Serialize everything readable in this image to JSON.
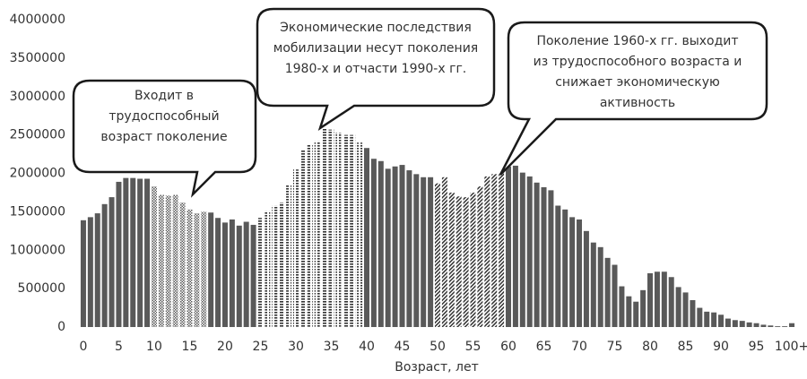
{
  "chart_data": {
    "type": "bar",
    "x_label": "Возраст, лет",
    "categories": [
      "0",
      null,
      null,
      null,
      null,
      "5",
      null,
      null,
      null,
      null,
      "10",
      null,
      null,
      null,
      null,
      "15",
      null,
      null,
      null,
      null,
      "20",
      null,
      null,
      null,
      null,
      "25",
      null,
      null,
      null,
      null,
      "30",
      null,
      null,
      null,
      null,
      "35",
      null,
      null,
      null,
      null,
      "40",
      null,
      null,
      null,
      null,
      "45",
      null,
      null,
      null,
      null,
      "50",
      null,
      null,
      null,
      null,
      "55",
      null,
      null,
      null,
      null,
      "60",
      null,
      null,
      null,
      null,
      "65",
      null,
      null,
      null,
      null,
      "70",
      null,
      null,
      null,
      null,
      "75",
      null,
      null,
      null,
      null,
      "80",
      null,
      null,
      null,
      null,
      "85",
      null,
      null,
      null,
      null,
      "90",
      null,
      null,
      null,
      null,
      "95",
      null,
      null,
      null,
      null,
      "100+"
    ],
    "values": [
      1390000,
      1430000,
      1480000,
      1600000,
      1690000,
      1890000,
      1940000,
      1940000,
      1930000,
      1930000,
      1830000,
      1720000,
      1710000,
      1720000,
      1620000,
      1530000,
      1480000,
      1500000,
      1490000,
      1420000,
      1360000,
      1400000,
      1320000,
      1370000,
      1330000,
      1420000,
      1510000,
      1580000,
      1620000,
      1850000,
      2050000,
      2310000,
      2370000,
      2420000,
      2590000,
      2570000,
      2530000,
      2500000,
      2500000,
      2400000,
      2330000,
      2190000,
      2160000,
      2060000,
      2090000,
      2110000,
      2040000,
      1990000,
      1950000,
      1950000,
      1870000,
      1950000,
      1750000,
      1700000,
      1690000,
      1750000,
      1830000,
      1960000,
      1990000,
      2000000,
      2090000,
      2100000,
      2010000,
      1960000,
      1880000,
      1820000,
      1780000,
      1580000,
      1530000,
      1430000,
      1400000,
      1250000,
      1100000,
      1040000,
      900000,
      810000,
      530000,
      400000,
      330000,
      480000,
      700000,
      720000,
      720000,
      650000,
      520000,
      450000,
      350000,
      250000,
      200000,
      190000,
      160000,
      110000,
      90000,
      80000,
      60000,
      50000,
      30000,
      20000,
      10000,
      10000,
      50000
    ],
    "color": "#595959",
    "highlights": [
      {
        "from": 10,
        "to": 17,
        "pattern": "dots"
      },
      {
        "from": 25,
        "to": 39,
        "pattern": "dashes"
      },
      {
        "from": 50,
        "to": 59,
        "pattern": "diagonal"
      }
    ],
    "ylim": [
      0,
      4000000
    ],
    "yticks": [
      0,
      500000,
      1000000,
      1500000,
      2000000,
      2500000,
      3000000,
      3500000,
      4000000
    ],
    "grid": false,
    "annotations": [
      {
        "lines": [
          "Входит в",
          "трудоспособный",
          "возраст поколение"
        ]
      },
      {
        "lines": [
          "Экономические последствия",
          "мобилизации несут поколения",
          "1980-х и отчасти 1990-х гг."
        ]
      },
      {
        "lines": [
          "Поколение 1960-х гг. выходит",
          "из трудоспособного возраста и",
          "снижает экономическую",
          "активность"
        ]
      }
    ]
  }
}
